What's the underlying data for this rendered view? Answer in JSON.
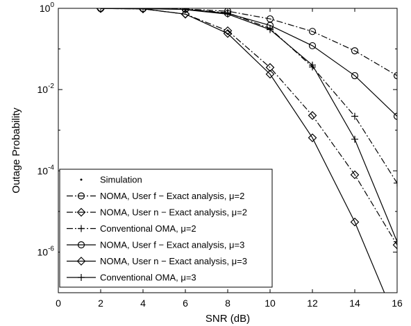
{
  "chart_data": {
    "type": "line",
    "title": "",
    "xlabel": "SNR (dB)",
    "ylabel": "Outage Probability",
    "xlim": [
      0,
      16
    ],
    "ylim": [
      1e-07,
      1
    ],
    "yscale": "log",
    "xticks": [
      0,
      2,
      4,
      6,
      8,
      10,
      12,
      14,
      16
    ],
    "xtick_labels": [
      "0",
      "2",
      "4",
      "6",
      "8",
      "10",
      "12",
      "14",
      "16"
    ],
    "yticks": [
      1,
      0.01,
      0.0001,
      1e-06
    ],
    "ytick_labels": [
      {
        "base": "10",
        "exp": "0"
      },
      {
        "base": "10",
        "exp": "-2"
      },
      {
        "base": "10",
        "exp": "-4"
      },
      {
        "base": "10",
        "exp": "-6"
      }
    ],
    "grid": false,
    "legend_position": "lower-left",
    "series": [
      {
        "name": "NOMA, User f − Exact analysis, μ=2",
        "line_style": "dashdot",
        "marker": "circle",
        "x": [
          2,
          4,
          6,
          8,
          10,
          12,
          14,
          16
        ],
        "y": [
          0.99,
          0.98,
          0.96,
          0.85,
          0.55,
          0.27,
          0.09,
          0.022
        ]
      },
      {
        "name": "NOMA, User n − Exact analysis, μ=2",
        "line_style": "dashdot",
        "marker": "diamond",
        "x": [
          2,
          4,
          6,
          8,
          10,
          12,
          14,
          16
        ],
        "y": [
          0.99,
          0.97,
          0.72,
          0.28,
          0.035,
          0.0023,
          8e-05,
          1.5e-06
        ]
      },
      {
        "name": "Conventional OMA, μ=2",
        "line_style": "dashdot",
        "marker": "plus",
        "x": [
          6,
          8,
          10,
          12,
          14,
          16
        ],
        "y": [
          0.95,
          0.78,
          0.32,
          0.036,
          0.0022,
          5e-05
        ]
      },
      {
        "name": "NOMA, User f − Exact analysis, μ=3",
        "line_style": "solid",
        "marker": "circle",
        "x": [
          2,
          4,
          6,
          8,
          10,
          12,
          14,
          16
        ],
        "y": [
          0.99,
          0.98,
          0.94,
          0.75,
          0.38,
          0.12,
          0.022,
          0.0022
        ]
      },
      {
        "name": "NOMA, User n − Exact analysis, μ=3",
        "line_style": "solid",
        "marker": "diamond",
        "x": [
          2,
          4,
          6,
          8,
          10,
          12,
          14,
          15.4
        ],
        "y": [
          0.99,
          0.97,
          0.72,
          0.24,
          0.024,
          0.00065,
          5.5e-06,
          1e-07
        ]
      },
      {
        "name": "Conventional OMA, μ=3",
        "line_style": "solid",
        "marker": "plus",
        "x": [
          6,
          8,
          10,
          12,
          14,
          16
        ],
        "y": [
          0.93,
          0.72,
          0.3,
          0.04,
          0.0006,
          1.8e-06
        ]
      }
    ],
    "legend": [
      {
        "label": "Simulation",
        "line_style": "none",
        "marker": "dot"
      },
      {
        "label": "NOMA, User f − Exact analysis, μ=2",
        "line_style": "dashdot",
        "marker": "circle"
      },
      {
        "label": "NOMA, User n − Exact analysis, μ=2",
        "line_style": "dashdot",
        "marker": "diamond"
      },
      {
        "label": "Conventional OMA, μ=2",
        "line_style": "dashdot",
        "marker": "plus"
      },
      {
        "label": "NOMA, User f − Exact analysis, μ=3",
        "line_style": "solid",
        "marker": "circle"
      },
      {
        "label": "NOMA, User n − Exact analysis, μ=3",
        "line_style": "solid",
        "marker": "diamond"
      },
      {
        "label": "Conventional OMA, μ=3",
        "line_style": "solid",
        "marker": "plus"
      }
    ]
  }
}
